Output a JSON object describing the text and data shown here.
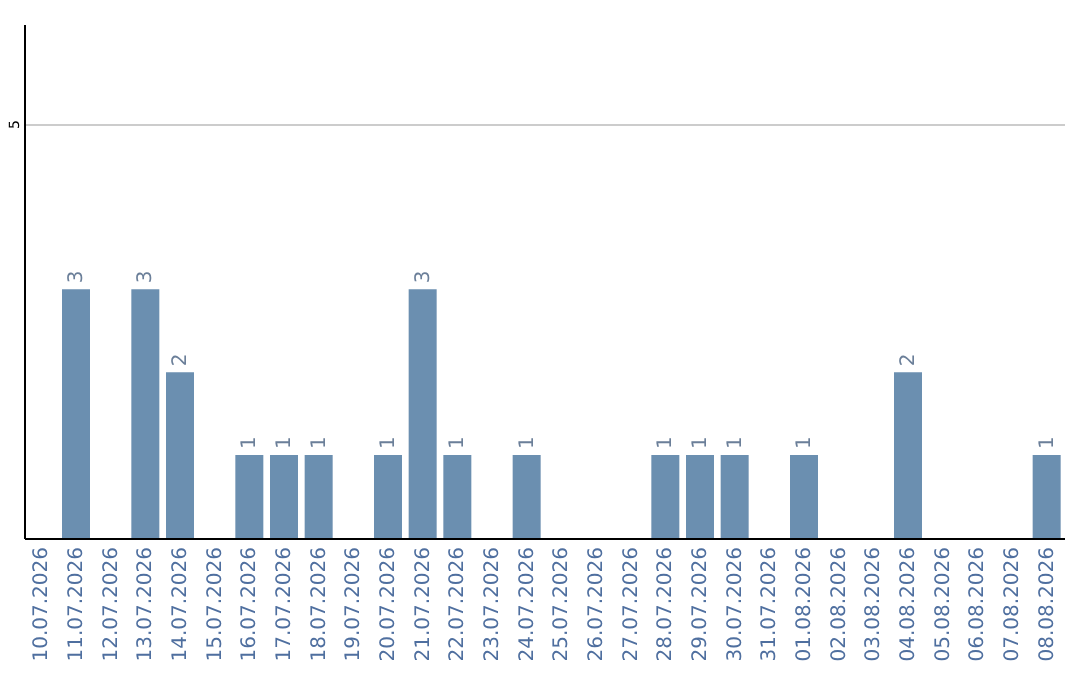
{
  "chart_data": {
    "type": "bar",
    "categories": [
      "10.07.2026",
      "11.07.2026",
      "12.07.2026",
      "13.07.2026",
      "14.07.2026",
      "15.07.2026",
      "16.07.2026",
      "17.07.2026",
      "18.07.2026",
      "19.07.2026",
      "20.07.2026",
      "21.07.2026",
      "22.07.2026",
      "23.07.2026",
      "24.07.2026",
      "25.07.2026",
      "26.07.2026",
      "27.07.2026",
      "28.07.2026",
      "29.07.2026",
      "30.07.2026",
      "31.07.2026",
      "01.08.2026",
      "02.08.2026",
      "03.08.2026",
      "04.08.2026",
      "05.08.2026",
      "06.08.2026",
      "07.08.2026",
      "08.08.2026"
    ],
    "values": [
      0,
      3,
      0,
      3,
      2,
      0,
      1,
      1,
      1,
      0,
      1,
      3,
      1,
      0,
      1,
      0,
      0,
      0,
      1,
      1,
      1,
      0,
      1,
      0,
      0,
      2,
      0,
      0,
      0,
      1
    ],
    "value_labels": [
      null,
      "3",
      null,
      "3",
      "2",
      null,
      "1",
      "1",
      "1",
      null,
      "1",
      "3",
      "1",
      null,
      "1",
      null,
      null,
      null,
      "1",
      "1",
      "1",
      null,
      "1",
      null,
      null,
      "2",
      null,
      null,
      null,
      "1"
    ],
    "color": "#6b8fb0",
    "ylim": [
      0,
      6.2
    ],
    "yticks": [
      5
    ],
    "grid": "y"
  }
}
